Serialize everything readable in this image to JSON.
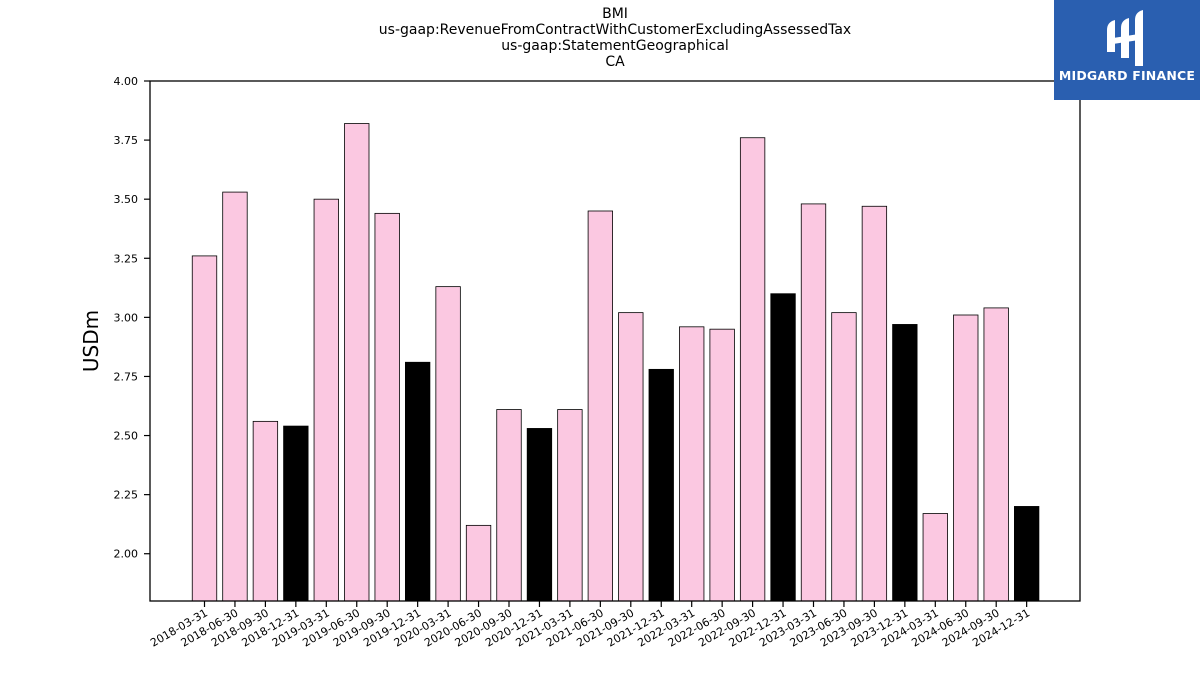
{
  "titles": [
    "BMI",
    "us-gaap:RevenueFromContractWithCustomerExcludingAssessedTax",
    "us-gaap:StatementGeographical",
    "CA"
  ],
  "logo": {
    "text": "MIDGARD FINANCE",
    "background": "#2a5fb0",
    "icon": "midgard-monogram-icon"
  },
  "colors": {
    "bar_pink": "#fbc8e1",
    "bar_black": "#000000",
    "edge": "#000000"
  },
  "chart_data": {
    "type": "bar",
    "title": "BMI us-gaap:RevenueFromContractWithCustomerExcludingAssessedTax us-gaap:StatementGeographical CA",
    "xlabel": "",
    "ylabel": "USDm",
    "ylim": [
      1.8,
      4.0
    ],
    "yticks": [
      2.0,
      2.25,
      2.5,
      2.75,
      3.0,
      3.25,
      3.5,
      3.75,
      4.0
    ],
    "ytick_labels": [
      "2.00",
      "2.25",
      "2.50",
      "2.75",
      "3.00",
      "3.25",
      "3.50",
      "3.75",
      "4.00"
    ],
    "grid": false,
    "categories": [
      "2018-03-31",
      "2018-06-30",
      "2018-09-30",
      "2018-12-31",
      "2019-03-31",
      "2019-06-30",
      "2019-09-30",
      "2019-12-31",
      "2020-03-31",
      "2020-06-30",
      "2020-09-30",
      "2020-12-31",
      "2021-03-31",
      "2021-06-30",
      "2021-09-30",
      "2021-12-31",
      "2022-03-31",
      "2022-06-30",
      "2022-09-30",
      "2022-12-31",
      "2023-03-31",
      "2023-06-30",
      "2023-09-30",
      "2023-12-31",
      "2024-03-31",
      "2024-06-30",
      "2024-09-30",
      "2024-12-31"
    ],
    "values": [
      3.26,
      3.53,
      2.56,
      2.54,
      3.5,
      3.82,
      3.44,
      2.81,
      3.13,
      2.12,
      2.61,
      2.53,
      2.61,
      3.45,
      3.02,
      2.78,
      2.96,
      2.95,
      3.76,
      3.1,
      3.48,
      3.02,
      3.47,
      2.97,
      2.17,
      3.01,
      3.04,
      2.2
    ],
    "bar_colors": [
      "pink",
      "pink",
      "pink",
      "black",
      "pink",
      "pink",
      "pink",
      "black",
      "pink",
      "pink",
      "pink",
      "black",
      "pink",
      "pink",
      "pink",
      "black",
      "pink",
      "pink",
      "pink",
      "black",
      "pink",
      "pink",
      "pink",
      "black",
      "pink",
      "pink",
      "pink",
      "black"
    ]
  }
}
